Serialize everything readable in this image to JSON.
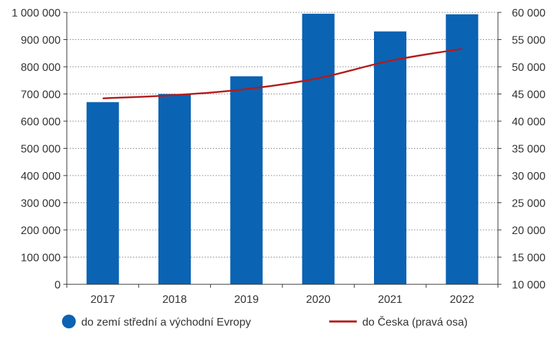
{
  "chart_data": {
    "type": "bar",
    "categories": [
      "2017",
      "2018",
      "2019",
      "2020",
      "2021",
      "2022"
    ],
    "series": [
      {
        "name": "do zemí střední a východní Evropy",
        "kind": "bar",
        "axis": "left",
        "color": "#0b63b3",
        "values": [
          670000,
          700000,
          765000,
          995000,
          930000,
          993000
        ]
      },
      {
        "name": "do Česka (pravá osa)",
        "kind": "line",
        "axis": "right",
        "color": "#b31b1b",
        "values": [
          44200,
          44800,
          45900,
          47900,
          51100,
          53300
        ]
      }
    ],
    "ylim_left": [
      0,
      1000000
    ],
    "ylim_right": [
      10000,
      60000
    ],
    "yticks_left": [
      "0",
      "100 000",
      "200 000",
      "300 000",
      "400 000",
      "500 000",
      "600 000",
      "700 000",
      "800 000",
      "900 000",
      "1 000 000"
    ],
    "yticks_right": [
      "10 000",
      "15 000",
      "20 000",
      "25 000",
      "30 000",
      "35 000",
      "40 000",
      "45 000",
      "50 000",
      "55 000",
      "60 000"
    ],
    "grid": true,
    "legend_position": "bottom"
  }
}
